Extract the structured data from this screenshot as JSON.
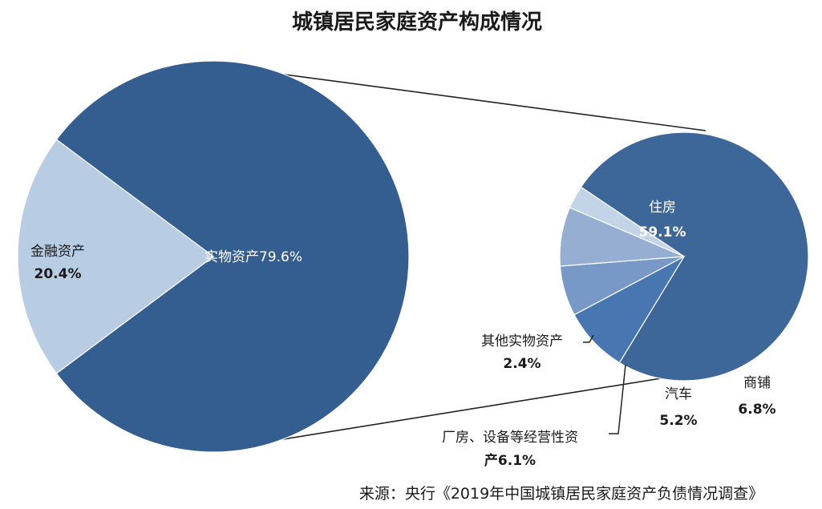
{
  "chart_data": {
    "type": "pie",
    "title": "城镇居民家庭资产构成情况",
    "source": "来源：央行《2019年中国城镇居民家庭资产负债情况调查》",
    "main_pie": {
      "slices": [
        {
          "label": "实物资产",
          "value": 79.6,
          "value_text": "实物资产79.6%",
          "color": "#355e90"
        },
        {
          "label": "金融资产",
          "value": 20.4,
          "value_text": "20.4%",
          "color": "#b8cce4"
        }
      ]
    },
    "detail_pie": {
      "parent": "实物资产",
      "slices": [
        {
          "label": "住房",
          "value": 59.1,
          "value_text": "59.1%",
          "color": "#3d6699"
        },
        {
          "label": "商铺",
          "value": 6.8,
          "value_text": "6.8%",
          "color": "#4876b0"
        },
        {
          "label": "汽车",
          "value": 5.2,
          "value_text": "5.2%",
          "color": "#7899c8"
        },
        {
          "label": "厂房、设备等经营性资产",
          "label_line2": "产6.1%",
          "label_line1": "厂房、设备等经营性资",
          "value": 6.1,
          "value_text": "6.1%",
          "color": "#95aed1"
        },
        {
          "label": "其他实物资产",
          "value": 2.4,
          "value_text": "2.4%",
          "color": "#c3d3e8"
        }
      ]
    }
  }
}
